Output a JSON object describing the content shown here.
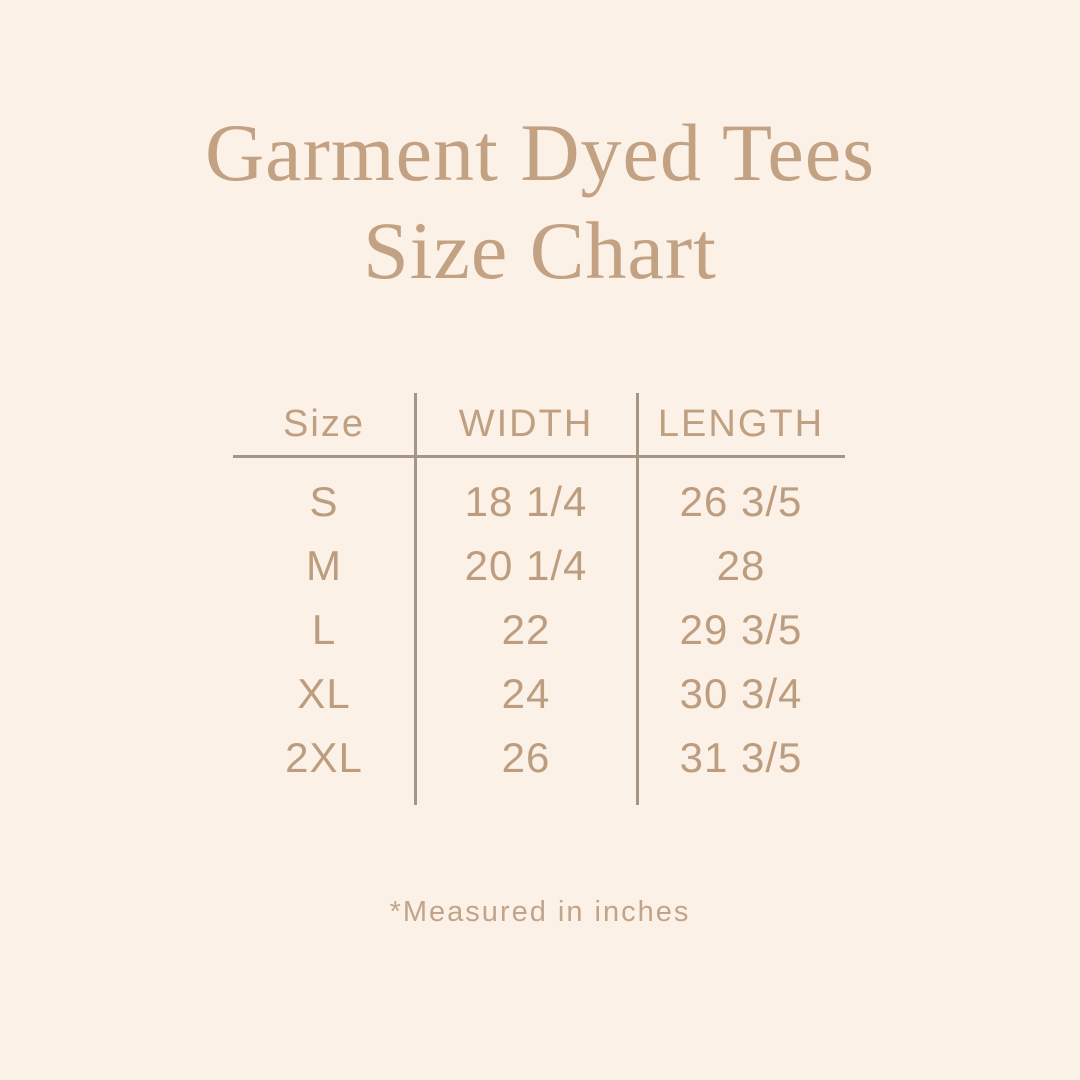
{
  "colors": {
    "bg": "#fcf1e6",
    "title": "#c3a284",
    "header-text": "#bfa083",
    "body-text": "#bc9d80",
    "line": "#a69686",
    "footnote": "#c2a48a"
  },
  "title": {
    "line1": "Garment Dyed Tees",
    "line2": "Size Chart"
  },
  "table": {
    "headers": [
      "Size",
      "WIDTH",
      "LENGTH"
    ],
    "rows": [
      {
        "size": "S",
        "width": "18 1/4",
        "length": "26 3/5"
      },
      {
        "size": "M",
        "width": "20 1/4",
        "length": "28"
      },
      {
        "size": "L",
        "width": "22",
        "length": "29 3/5"
      },
      {
        "size": "XL",
        "width": "24",
        "length": "30 3/4"
      },
      {
        "size": "2XL",
        "width": "26",
        "length": "31 3/5"
      }
    ]
  },
  "footnote": {
    "text": "*Measured in inches"
  }
}
